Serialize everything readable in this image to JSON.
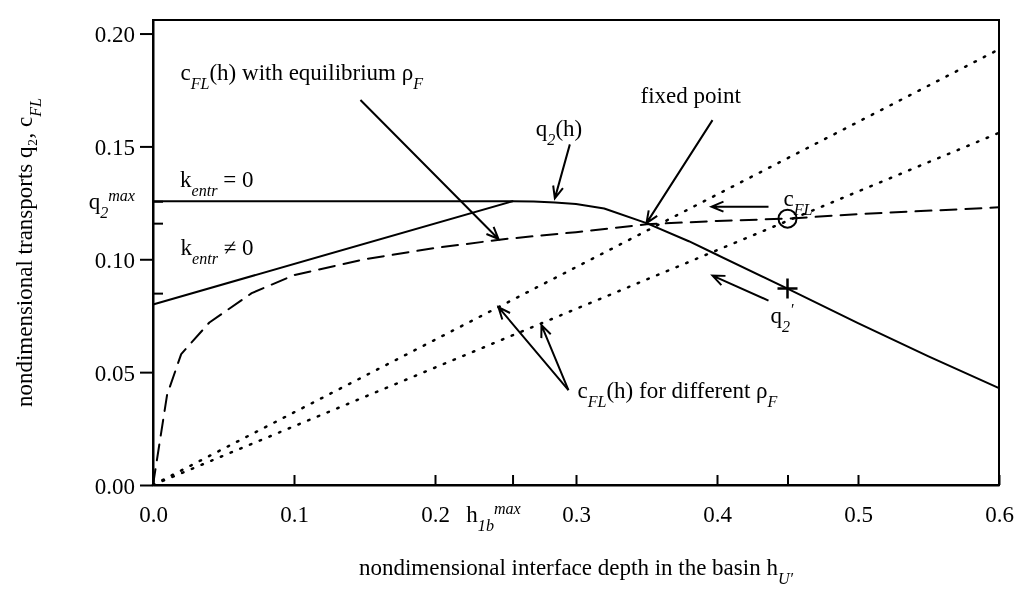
{
  "chart_data": {
    "type": "line",
    "xlabel": "nondimensional interface depth in the basin h$_{U′}$",
    "ylabel": "nondimensional transports q₂, c$_{FL}$",
    "xlim": [
      0,
      0.6
    ],
    "ylim": [
      0,
      0.206
    ],
    "xticks": [
      {
        "value": 0,
        "label": "0.0"
      },
      0.1,
      0.2,
      {
        "value": 0.255,
        "label": null
      },
      0.3,
      0.4,
      {
        "value": 0.45,
        "label": null
      },
      0.5,
      0.6
    ],
    "yticks": [
      {
        "value": 0,
        "label": "0.00"
      },
      {
        "value": 0.05,
        "label": "0.05"
      },
      {
        "value": 0.085,
        "label": null
      },
      {
        "value": 0.1,
        "label": "0.10"
      },
      {
        "value": 0.116,
        "label": null
      },
      {
        "value": 0.1257,
        "label": null
      },
      {
        "value": 0.15,
        "label": "0.15"
      },
      {
        "value": 0.2,
        "label": "0.20"
      }
    ],
    "grid": false,
    "series": [
      {
        "line_style": "solid",
        "color": "#000000",
        "x": [
          0,
          0.255,
          0.27,
          0.285,
          0.3,
          0.32,
          0.35,
          0.38,
          0.4,
          0.45,
          0.5,
          0.55,
          0.6
        ],
        "values": [
          0.1257,
          0.1257,
          0.1256,
          0.1252,
          0.1245,
          0.1225,
          0.116,
          0.108,
          0.102,
          0.087,
          0.0717,
          0.057,
          0.0429
        ]
      },
      {
        "line_style": "solid",
        "color": "#000000",
        "x": [
          0,
          0.255
        ],
        "values": [
          0.08,
          0.1257
        ]
      },
      {
        "line_style": "dashed",
        "color": "#000000",
        "x": [
          0,
          0.005,
          0.01,
          0.02,
          0.04,
          0.07,
          0.1,
          0.15,
          0.2,
          0.25,
          0.3,
          0.35,
          0.4,
          0.45,
          0.5,
          0.6
        ],
        "values": [
          0,
          0.02,
          0.04,
          0.058,
          0.072,
          0.085,
          0.093,
          0.1,
          0.105,
          0.109,
          0.112,
          0.1155,
          0.117,
          0.118,
          0.12,
          0.123
        ]
      },
      {
        "line_style": "dotted",
        "color": "#000000",
        "x": [
          0,
          0.6
        ],
        "values": [
          0,
          0.193
        ]
      },
      {
        "line_style": "dotted",
        "color": "#000000",
        "x": [
          0,
          0.6
        ],
        "values": [
          0,
          0.156
        ]
      },
      {
        "type": "scatter",
        "marker": "circle",
        "color": "#000000",
        "x": [
          0.45
        ],
        "values": [
          0.118
        ]
      },
      {
        "type": "scatter",
        "marker": "cross",
        "color": "#000000",
        "x": [
          0.45
        ],
        "values": [
          0.087
        ]
      }
    ],
    "annotations": [
      {
        "text": "k$_{entr}$ = 0",
        "x": 0,
        "y": 0.1257
      },
      {
        "text": "k$_{entr}$ ≠ 0",
        "x": 0.05,
        "y": 0.089
      },
      {
        "text": "c$_{FL}$(h) with equilibrium ρ$_{F}$",
        "x": 0.245,
        "y": 0.109
      },
      {
        "text": "q$_{2}$(h)",
        "x": 0.285,
        "y": 0.1252
      },
      {
        "text": "fixed point",
        "x": 0.35,
        "y": 0.116
      },
      {
        "text": "c$_{FL}$",
        "x": 0.45,
        "y": 0.118
      },
      {
        "text": "q$_{2}$$^{′}$",
        "x": 0.45,
        "y": 0.087
      },
      {
        "text": "c$_{FL}$(h) for different ρ$_{F}$",
        "x": 0.245,
        "y": 0.0788
      },
      "h$_{1b}$$^{max}$",
      {
        "text": "q$_{2}$$^{max}$",
        "x": 0,
        "y": 0.1257
      }
    ]
  }
}
